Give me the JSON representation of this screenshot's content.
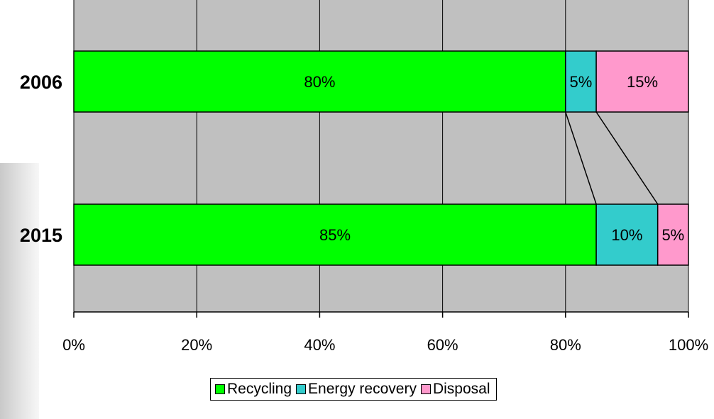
{
  "chart_data": {
    "type": "bar",
    "orientation": "horizontal",
    "stacked": true,
    "percent_stacked": true,
    "categories": [
      "2006",
      "2015"
    ],
    "series": [
      {
        "name": "Recycling",
        "values": [
          80,
          85
        ],
        "labels": [
          "80%",
          "85%"
        ],
        "color": "#00ff00"
      },
      {
        "name": "Energy recovery",
        "values": [
          5,
          10
        ],
        "labels": [
          "5%",
          "10%"
        ],
        "color": "#33cccc"
      },
      {
        "name": "Disposal",
        "values": [
          15,
          5
        ],
        "labels": [
          "15%",
          "5%"
        ],
        "color": "#ff99cc"
      }
    ],
    "x_ticks": [
      "0%",
      "20%",
      "40%",
      "60%",
      "80%",
      "100%"
    ],
    "xlim": [
      0,
      100
    ],
    "series_lines": true,
    "grid": true,
    "plot_background": "#c0c0c0",
    "legend_position": "bottom",
    "title": "",
    "xlabel": "",
    "ylabel": ""
  }
}
